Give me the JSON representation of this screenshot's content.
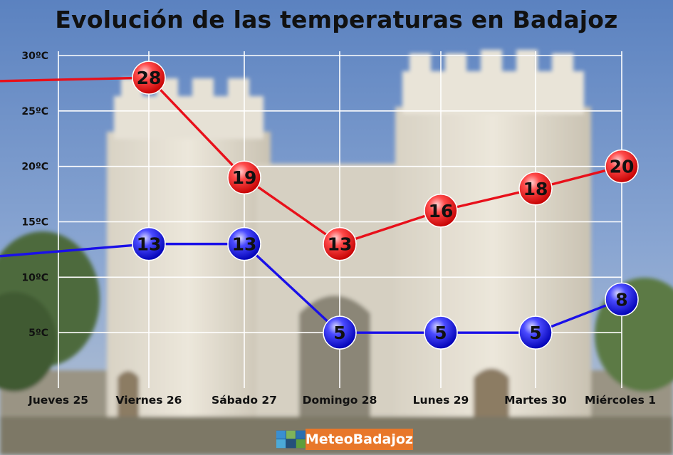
{
  "chart_data": {
    "type": "line",
    "title": "Evolución de las temperaturas en Badajoz",
    "categories": [
      "Jueves 25",
      "Viernes 26",
      "Sábado 27",
      "Domingo 28",
      "Lunes 29",
      "Martes 30",
      "Miércoles 1"
    ],
    "y_tick_labels": [
      "5ºC",
      "10ºC",
      "15ºC",
      "20ºC",
      "25ºC",
      "30ºC"
    ],
    "y_ticks": [
      5,
      10,
      15,
      20,
      25,
      30
    ],
    "ylim": [
      0,
      30
    ],
    "grid": true,
    "series": [
      {
        "key": "max",
        "color": "#e8101a",
        "values": [
          27.7,
          28,
          19,
          13,
          16,
          18,
          20
        ],
        "labels": [
          null,
          "28",
          "19",
          "13",
          "16",
          "18",
          "20"
        ]
      },
      {
        "key": "min",
        "color": "#1a10e8",
        "values": [
          11.9,
          13,
          13,
          5,
          5,
          5,
          8
        ],
        "labels": [
          null,
          "13",
          "13",
          "5",
          "5",
          "5",
          "8"
        ]
      }
    ]
  },
  "footer": {
    "brand": "MeteoBadajoz"
  }
}
